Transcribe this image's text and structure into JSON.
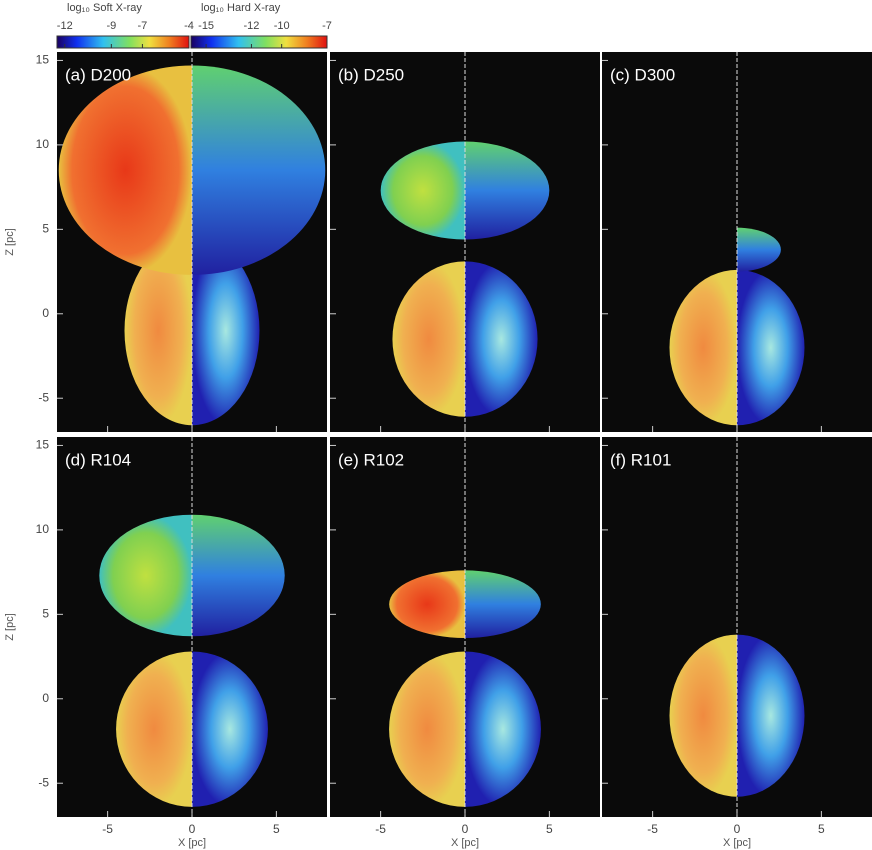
{
  "colorbars": [
    {
      "title": "log₁₀ Soft X-ray",
      "lim": [
        -12.5,
        -4
      ],
      "ticks": [
        -12,
        -9,
        -7,
        -4
      ]
    },
    {
      "title": "log₁₀ Hard X-ray",
      "lim": [
        -16,
        -7
      ],
      "ticks": [
        -15,
        -12,
        -10,
        -7
      ]
    }
  ],
  "axes": {
    "xlabel": "X [pc]",
    "ylabel": "Z [pc]",
    "xlim": [
      -8,
      8
    ],
    "ylim": [
      -7,
      15.5
    ],
    "xticks": [
      -5,
      0,
      5
    ],
    "yticks": [
      -5,
      0,
      5,
      10,
      15
    ]
  },
  "panels": [
    "(a) D200",
    "(b) D250",
    "(c) D300",
    "(d) R104",
    "(e) R102",
    "(f) R101"
  ]
}
